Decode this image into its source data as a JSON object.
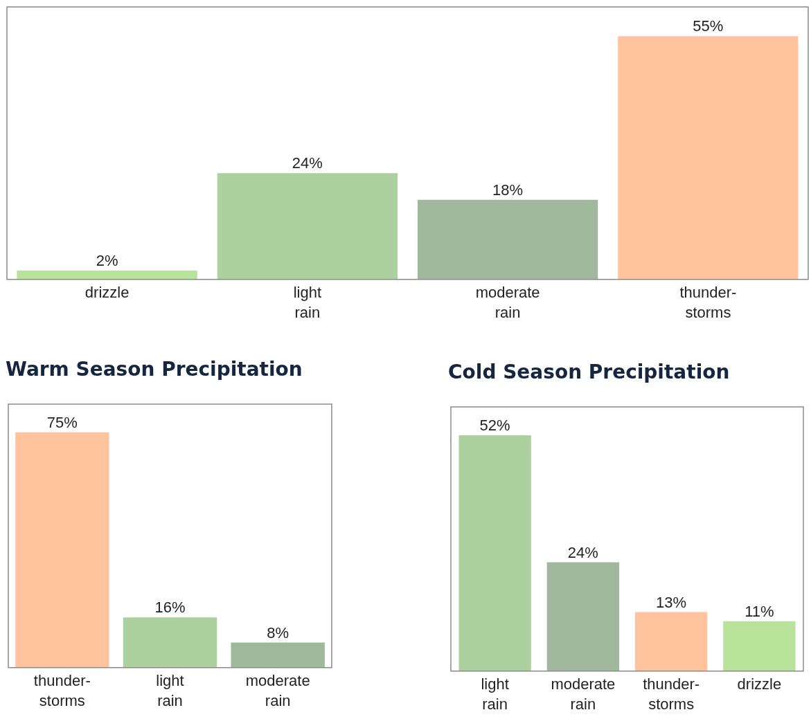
{
  "chart_data": [
    {
      "type": "bar",
      "categories": [
        "drizzle",
        "light rain",
        "moderate rain",
        "thunder-storms"
      ],
      "values": [
        2,
        24,
        18,
        55
      ],
      "value_labels": [
        "2%",
        "24%",
        "18%",
        "55%"
      ],
      "colors": [
        "#b9e29a",
        "#acd19e",
        "#a0b89c",
        "#ffc49e"
      ],
      "tick_labels": "x"
    },
    {
      "type": "bar",
      "title": "Warm Season Precipitation",
      "categories": [
        "thunder-storms",
        "light rain",
        "moderate rain"
      ],
      "values": [
        75,
        16,
        8
      ],
      "value_labels": [
        "75%",
        "16%",
        "8%"
      ],
      "colors": [
        "#ffc49e",
        "#acd19e",
        "#a0b89c"
      ],
      "tick_labels": "x"
    },
    {
      "type": "bar",
      "title": "Cold Season Precipitation",
      "categories": [
        "light rain",
        "moderate rain",
        "thunder-storms",
        "drizzle"
      ],
      "values": [
        52,
        24,
        13,
        11
      ],
      "value_labels": [
        "52%",
        "24%",
        "13%",
        "11%"
      ],
      "colors": [
        "#acd19e",
        "#a0b89c",
        "#ffc49e",
        "#b9e29a"
      ],
      "tick_labels": "x"
    }
  ]
}
